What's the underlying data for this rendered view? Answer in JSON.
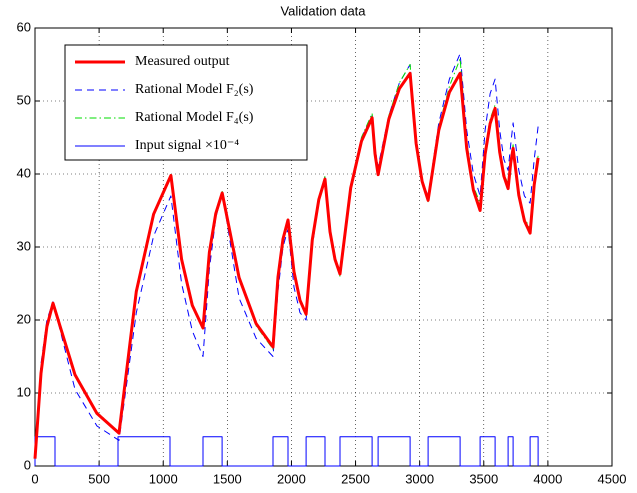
{
  "chart_data": {
    "type": "line",
    "title": "Validation data",
    "x": [
      0,
      47,
      93,
      140,
      312,
      483,
      655,
      790,
      925,
      1060,
      1143,
      1227,
      1310,
      1360,
      1410,
      1460,
      1592,
      1724,
      1856,
      1895,
      1934,
      1973,
      2020,
      2067,
      2114,
      2163,
      2213,
      2262,
      2301,
      2340,
      2379,
      2462,
      2546,
      2629,
      2652,
      2676,
      2759,
      2842,
      2925,
      2972,
      3019,
      3066,
      3149,
      3232,
      3315,
      3367,
      3419,
      3471,
      3510,
      3549,
      3588,
      3624,
      3657,
      3690,
      3710,
      3729,
      3773,
      3817,
      3861,
      3893,
      3924
    ],
    "series": [
      {
        "name": "Measured output",
        "color": "#ff0000",
        "linestyle": "-",
        "values": [
          1,
          12.7,
          19.1,
          22.3,
          12.5,
          7.2,
          4.5,
          23.9,
          34.5,
          39.8,
          28.3,
          22.0,
          18.9,
          29.3,
          34.6,
          37.4,
          25.8,
          19.5,
          16.3,
          25.9,
          31.1,
          33.7,
          26.6,
          22.7,
          20.8,
          31.0,
          36.5,
          39.3,
          32.1,
          28.3,
          26.3,
          38.1,
          44.5,
          47.7,
          42.8,
          39.9,
          47.5,
          51.7,
          53.8,
          44.2,
          39.0,
          36.4,
          46.0,
          51.2,
          53.8,
          43.5,
          37.8,
          35,
          42.7,
          46.9,
          49,
          43,
          39.7,
          38,
          41.5,
          43.5,
          37.1,
          33.6,
          31.9,
          38.5,
          42.2
        ]
      },
      {
        "name": "Rational Model F₂(s)",
        "color": "#0000ff",
        "linestyle": "--",
        "values": [
          1,
          14,
          20,
          22.5,
          10.5,
          5.5,
          3.5,
          21,
          31.5,
          37,
          25,
          18.5,
          15,
          27,
          34,
          37.5,
          23,
          17.5,
          15,
          24,
          30,
          32.5,
          24.5,
          21,
          20,
          30,
          36.5,
          39.5,
          32,
          28,
          27,
          38.5,
          45,
          48,
          43.5,
          41,
          48,
          52.5,
          55,
          45,
          39,
          37,
          47,
          53,
          56.5,
          46,
          40,
          37,
          46,
          51,
          53,
          46,
          42,
          40.5,
          44,
          47,
          40.5,
          37,
          36,
          42,
          46.5
        ]
      },
      {
        "name": "Rational Model F₄(s)",
        "color": "#00dd00",
        "linestyle": "-.",
        "values": [
          1,
          12.9,
          19.3,
          22.5,
          12.7,
          7.4,
          4.6,
          24,
          34.6,
          40,
          28.2,
          21.8,
          18.7,
          29.5,
          34.8,
          37.6,
          25.6,
          19.2,
          16,
          26,
          31.2,
          34,
          26.5,
          22.5,
          20.6,
          31.2,
          36.8,
          39.7,
          32,
          28.1,
          26,
          38.5,
          45,
          48.3,
          43,
          40,
          48,
          52.5,
          55,
          44.5,
          39,
          36.2,
          46.5,
          52,
          55.8,
          44.5,
          38.3,
          36,
          43.5,
          47.5,
          49.5,
          43.5,
          40.2,
          38.5,
          42,
          44,
          37.5,
          34,
          32.5,
          39,
          42.5
        ]
      },
      {
        "name": "Input signal ×10⁻⁴",
        "color": "#0000ff",
        "linestyle": "-",
        "x": [
          0,
          0,
          156,
          156,
          647,
          647,
          1053,
          1053,
          1310,
          1310,
          1459,
          1459,
          1856,
          1856,
          1973,
          1973,
          2114,
          2114,
          2262,
          2262,
          2379,
          2379,
          2629,
          2629,
          2676,
          2676,
          2925,
          2925,
          3066,
          3066,
          3315,
          3315,
          3471,
          3471,
          3588,
          3588,
          3690,
          3690,
          3729,
          3729,
          3861,
          3861,
          3924,
          3924
        ],
        "values": [
          0,
          4,
          4,
          0,
          0,
          4,
          4,
          0,
          0,
          4,
          4,
          0,
          0,
          4,
          4,
          0,
          0,
          4,
          4,
          0,
          0,
          4,
          4,
          0,
          0,
          4,
          4,
          0,
          0,
          4,
          4,
          0,
          0,
          4,
          4,
          0,
          0,
          4,
          4,
          0,
          0,
          4,
          4,
          0
        ]
      }
    ],
    "xlim": [
      0,
      4500
    ],
    "xticks": [
      0,
      500,
      1000,
      1500,
      2000,
      2500,
      3000,
      3500,
      4000,
      4500
    ],
    "ylim": [
      0,
      60
    ],
    "yticks": [
      0,
      10,
      20,
      30,
      40,
      50,
      60
    ],
    "grid": true,
    "legend": "upper left"
  }
}
